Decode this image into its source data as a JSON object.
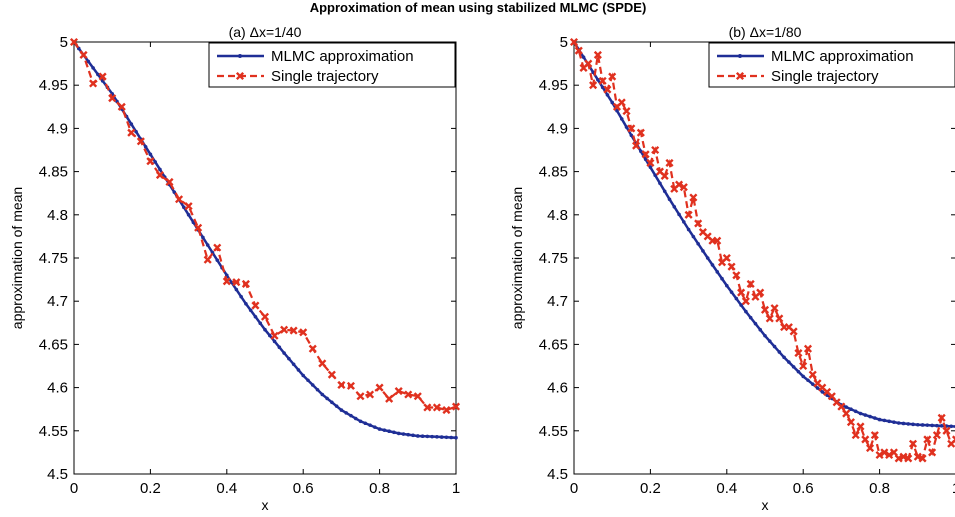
{
  "figure": {
    "title": "Approximation of mean using stabilized MLMC (SPDE)"
  },
  "colors": {
    "mlmc": "#1f2e96",
    "trajectory": "#e0311f",
    "axes": "#000000",
    "background": "#ffffff"
  },
  "chart_data": [
    {
      "type": "line",
      "title": "(a) Δx=1/40",
      "xlabel": "x",
      "ylabel": "approximation of mean",
      "xlim": [
        0,
        1
      ],
      "ylim": [
        4.5,
        5
      ],
      "xticks": [
        "0",
        "0.2",
        "0.4",
        "0.6",
        "0.8",
        "1"
      ],
      "xtick_values": [
        0,
        0.2,
        0.4,
        0.6,
        0.8,
        1
      ],
      "yticks": [
        "4.5",
        "4.55",
        "4.6",
        "4.65",
        "4.7",
        "4.75",
        "4.8",
        "4.85",
        "4.9",
        "4.95",
        "5"
      ],
      "ytick_values": [
        4.5,
        4.55,
        4.6,
        4.65,
        4.7,
        4.75,
        4.8,
        4.85,
        4.9,
        4.95,
        5
      ],
      "grid": false,
      "legend": "top-right",
      "series": [
        {
          "name": "MLMC approximation",
          "style": "solid line with dot markers",
          "x": [
            0,
            0.05,
            0.1,
            0.15,
            0.2,
            0.25,
            0.3,
            0.35,
            0.4,
            0.45,
            0.5,
            0.55,
            0.6,
            0.65,
            0.7,
            0.75,
            0.8,
            0.85,
            0.9,
            0.95,
            1.0
          ],
          "y": [
            5.0,
            4.97,
            4.94,
            4.905,
            4.87,
            4.835,
            4.8,
            4.765,
            4.73,
            4.697,
            4.667,
            4.64,
            4.614,
            4.592,
            4.574,
            4.561,
            4.552,
            4.547,
            4.544,
            4.543,
            4.542
          ]
        },
        {
          "name": "Single trajectory",
          "style": "dashed line with x markers",
          "x": [
            0,
            0.025,
            0.05,
            0.075,
            0.1,
            0.125,
            0.15,
            0.175,
            0.2,
            0.225,
            0.25,
            0.275,
            0.3,
            0.325,
            0.35,
            0.375,
            0.4,
            0.425,
            0.45,
            0.475,
            0.5,
            0.525,
            0.55,
            0.575,
            0.6,
            0.625,
            0.65,
            0.675,
            0.7,
            0.725,
            0.75,
            0.775,
            0.8,
            0.825,
            0.85,
            0.875,
            0.9,
            0.925,
            0.95,
            0.975,
            1.0
          ],
          "y": [
            5.0,
            4.985,
            4.952,
            4.96,
            4.935,
            4.925,
            4.895,
            4.885,
            4.862,
            4.846,
            4.838,
            4.818,
            4.81,
            4.785,
            4.748,
            4.762,
            4.723,
            4.722,
            4.72,
            4.695,
            4.682,
            4.66,
            4.667,
            4.666,
            4.664,
            4.645,
            4.628,
            4.615,
            4.603,
            4.602,
            4.59,
            4.592,
            4.6,
            4.587,
            4.596,
            4.592,
            4.59,
            4.577,
            4.577,
            4.574,
            4.578
          ]
        }
      ]
    },
    {
      "type": "line",
      "title": "(b) Δx=1/80",
      "xlabel": "x",
      "ylabel": "approximation of mean",
      "xlim": [
        0,
        1
      ],
      "ylim": [
        4.5,
        5
      ],
      "xticks": [
        "0",
        "0.2",
        "0.4",
        "0.6",
        "0.8",
        "1"
      ],
      "xtick_values": [
        0,
        0.2,
        0.4,
        0.6,
        0.8,
        1
      ],
      "yticks": [
        "4.5",
        "4.55",
        "4.6",
        "4.65",
        "4.7",
        "4.75",
        "4.8",
        "4.85",
        "4.9",
        "4.95",
        "5"
      ],
      "ytick_values": [
        4.5,
        4.55,
        4.6,
        4.65,
        4.7,
        4.75,
        4.8,
        4.85,
        4.9,
        4.95,
        5
      ],
      "grid": false,
      "legend": "top-right",
      "series": [
        {
          "name": "MLMC approximation",
          "style": "solid line with dot markers",
          "x": [
            0,
            0.05,
            0.1,
            0.15,
            0.2,
            0.25,
            0.3,
            0.35,
            0.4,
            0.45,
            0.5,
            0.55,
            0.6,
            0.65,
            0.7,
            0.75,
            0.8,
            0.85,
            0.9,
            0.95,
            1.0
          ],
          "y": [
            5.0,
            4.965,
            4.93,
            4.892,
            4.855,
            4.818,
            4.783,
            4.75,
            4.718,
            4.688,
            4.66,
            4.635,
            4.613,
            4.595,
            4.58,
            4.57,
            4.563,
            4.559,
            4.557,
            4.556,
            4.555
          ]
        },
        {
          "name": "Single trajectory",
          "style": "dashed line with x markers",
          "x": [
            0,
            0.0125,
            0.025,
            0.0375,
            0.05,
            0.0625,
            0.075,
            0.0875,
            0.1,
            0.1125,
            0.125,
            0.1375,
            0.15,
            0.1625,
            0.175,
            0.1875,
            0.2,
            0.2125,
            0.225,
            0.2375,
            0.25,
            0.2625,
            0.275,
            0.2875,
            0.3,
            0.3125,
            0.325,
            0.3375,
            0.35,
            0.3625,
            0.375,
            0.3875,
            0.4,
            0.4125,
            0.425,
            0.4375,
            0.45,
            0.4625,
            0.475,
            0.4875,
            0.5,
            0.5125,
            0.525,
            0.5375,
            0.55,
            0.5625,
            0.575,
            0.5875,
            0.6,
            0.6125,
            0.625,
            0.6375,
            0.65,
            0.6625,
            0.675,
            0.6875,
            0.7,
            0.7125,
            0.725,
            0.7375,
            0.75,
            0.7625,
            0.775,
            0.7875,
            0.8,
            0.8125,
            0.825,
            0.8375,
            0.85,
            0.8625,
            0.875,
            0.8875,
            0.9,
            0.9125,
            0.925,
            0.9375,
            0.95,
            0.9625,
            0.975,
            0.9875,
            1.0
          ],
          "y": [
            5.0,
            4.99,
            4.97,
            4.975,
            4.95,
            4.985,
            4.955,
            4.945,
            4.96,
            4.925,
            4.93,
            4.92,
            4.9,
            4.88,
            4.895,
            4.87,
            4.86,
            4.875,
            4.85,
            4.845,
            4.86,
            4.83,
            4.835,
            4.832,
            4.8,
            4.82,
            4.79,
            4.78,
            4.775,
            4.77,
            4.77,
            4.745,
            4.75,
            4.74,
            4.73,
            4.71,
            4.7,
            4.72,
            4.705,
            4.71,
            4.69,
            4.68,
            4.692,
            4.68,
            4.67,
            4.67,
            4.665,
            4.64,
            4.625,
            4.645,
            4.615,
            4.605,
            4.6,
            4.595,
            4.59,
            4.583,
            4.578,
            4.57,
            4.56,
            4.545,
            4.555,
            4.54,
            4.53,
            4.545,
            4.522,
            4.525,
            4.522,
            4.525,
            4.518,
            4.52,
            4.518,
            4.535,
            4.52,
            4.518,
            4.54,
            4.525,
            4.545,
            4.565,
            4.55,
            4.535,
            4.54
          ]
        }
      ]
    }
  ]
}
